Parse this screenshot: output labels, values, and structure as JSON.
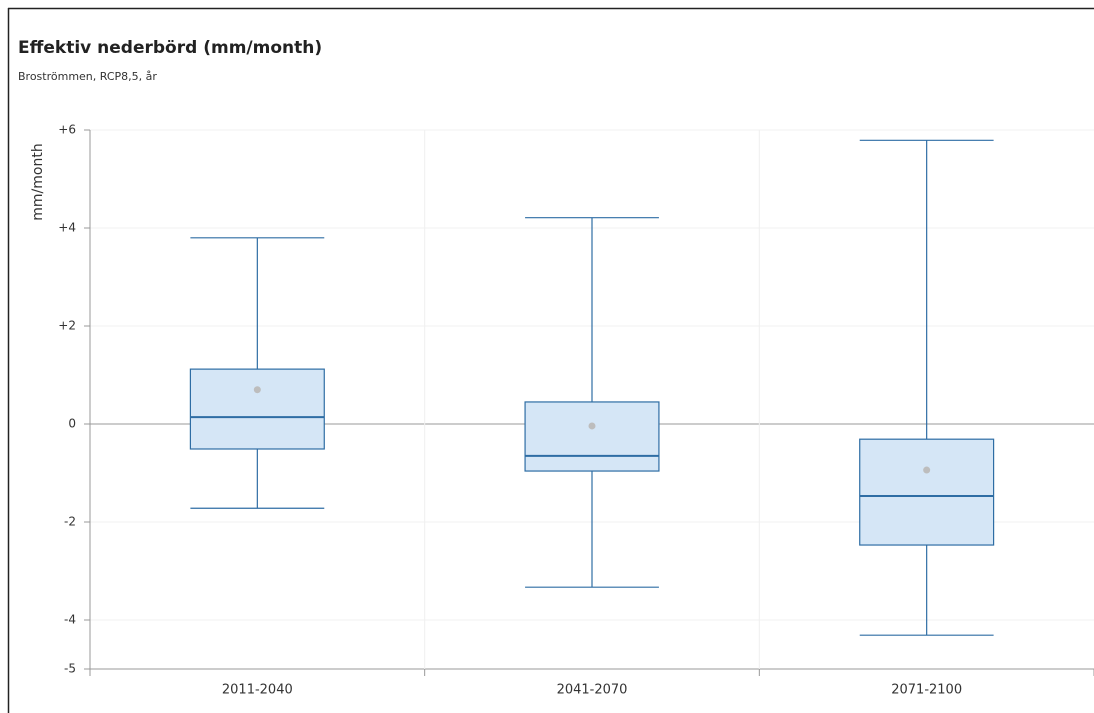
{
  "chart_data": {
    "type": "boxplot",
    "title": "Effektiv nederbörd (mm/month)",
    "subtitle": "Broströmmen, RCP8,5, år",
    "ylabel": "mm/month",
    "categories": [
      "2011-2040",
      "2041-2070",
      "2071-2100"
    ],
    "max": [
      3.8,
      4.21,
      5.79
    ],
    "q3": [
      1.12,
      0.45,
      -0.31
    ],
    "median": [
      0.14,
      -0.65,
      -1.47
    ],
    "q1": [
      -0.51,
      -0.96,
      -2.47
    ],
    "min": [
      -1.72,
      -3.33,
      -4.31
    ],
    "mean": [
      0.7,
      -0.04,
      -0.94
    ],
    "color": "#2e6da4",
    "box_fill": "#d5e6f6",
    "mean_color": "#bdbdbd",
    "ylim": [
      -5,
      6
    ],
    "yticks": [
      {
        "value": 6,
        "label": "+6"
      },
      {
        "value": 4,
        "label": "+4"
      },
      {
        "value": 2,
        "label": "+2"
      },
      0,
      -2,
      -4,
      -5
    ],
    "grid": true
  }
}
